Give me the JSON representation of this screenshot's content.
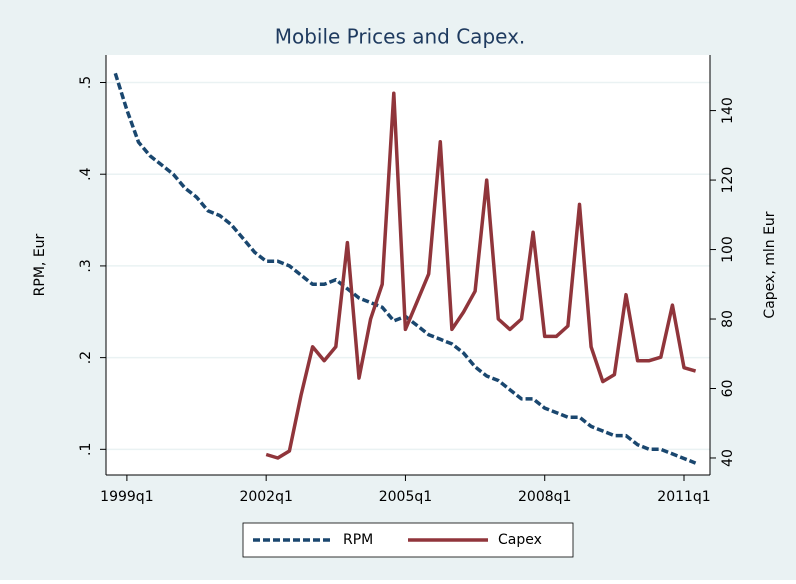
{
  "chart_data": {
    "type": "line",
    "title": "Mobile Prices and Capex.",
    "ylabel": "RPM, Eur",
    "y2label": "Capex, mln Eur",
    "xlim": [
      1998.55,
      2011.56
    ],
    "xticks": [
      {
        "value": 1999,
        "label": "1999q1"
      },
      {
        "value": 2002,
        "label": "2002q1"
      },
      {
        "value": 2005,
        "label": "2005q1"
      },
      {
        "value": 2008,
        "label": "2008q1"
      },
      {
        "value": 2011,
        "label": "2011q1"
      }
    ],
    "ylim": [
      0.072,
      0.53
    ],
    "yticks": [
      {
        "value": 0.1,
        "label": ".1"
      },
      {
        "value": 0.2,
        "label": ".2"
      },
      {
        "value": 0.3,
        "label": ".3"
      },
      {
        "value": 0.4,
        "label": ".4"
      },
      {
        "value": 0.5,
        "label": ".5"
      }
    ],
    "y2lim": [
      35.1,
      156
    ],
    "y2ticks": [
      40,
      60,
      80,
      100,
      120,
      140
    ],
    "grid": true,
    "legend": "bottom",
    "series": [
      {
        "name": "RPM",
        "color": "#1a476f",
        "line_style": "dashed",
        "x": [
          1998.75,
          1999,
          1999.25,
          1999.5,
          1999.75,
          2000,
          2000.25,
          2000.5,
          2000.75,
          2001,
          2001.25,
          2001.5,
          2001.75,
          2002,
          2002.25,
          2002.5,
          2002.75,
          2003,
          2003.25,
          2003.5,
          2003.75,
          2004,
          2004.25,
          2004.5,
          2004.75,
          2005,
          2005.25,
          2005.5,
          2005.75,
          2006,
          2006.25,
          2006.5,
          2006.75,
          2007,
          2007.25,
          2007.5,
          2007.75,
          2008,
          2008.25,
          2008.5,
          2008.75,
          2009,
          2009.25,
          2009.5,
          2009.75,
          2010,
          2010.25,
          2010.5,
          2010.75,
          2011,
          2011.25
        ],
        "values": [
          0.51,
          0.47,
          0.435,
          0.42,
          0.41,
          0.4,
          0.385,
          0.375,
          0.36,
          0.355,
          0.345,
          0.33,
          0.315,
          0.305,
          0.305,
          0.3,
          0.29,
          0.28,
          0.28,
          0.285,
          0.275,
          0.265,
          0.26,
          0.255,
          0.24,
          0.245,
          0.235,
          0.225,
          0.22,
          0.215,
          0.205,
          0.19,
          0.18,
          0.175,
          0.165,
          0.155,
          0.155,
          0.145,
          0.14,
          0.135,
          0.135,
          0.125,
          0.12,
          0.115,
          0.115,
          0.105,
          0.1,
          0.1,
          0.095,
          0.09,
          0.085
        ]
      },
      {
        "name": "Capex",
        "color": "#90353b",
        "line_style": "solid",
        "axis": "y2",
        "x": [
          2002,
          2002.25,
          2002.5,
          2002.75,
          2003,
          2003.25,
          2003.5,
          2003.75,
          2004,
          2004.25,
          2004.5,
          2004.75,
          2005,
          2005.25,
          2005.5,
          2005.75,
          2006,
          2006.25,
          2006.5,
          2006.75,
          2007,
          2007.25,
          2007.5,
          2007.75,
          2008,
          2008.25,
          2008.5,
          2008.75,
          2009,
          2009.25,
          2009.5,
          2009.75,
          2010,
          2010.25,
          2010.5,
          2010.75,
          2011,
          2011.25
        ],
        "values": [
          41,
          40,
          42,
          58,
          72,
          68,
          72,
          102,
          63,
          80,
          90,
          145,
          77,
          85,
          93,
          131,
          77,
          82,
          88,
          120,
          80,
          77,
          80,
          105,
          75,
          75,
          78,
          113,
          72,
          62,
          64,
          87,
          68,
          68,
          69,
          84,
          66,
          65
        ]
      }
    ]
  }
}
